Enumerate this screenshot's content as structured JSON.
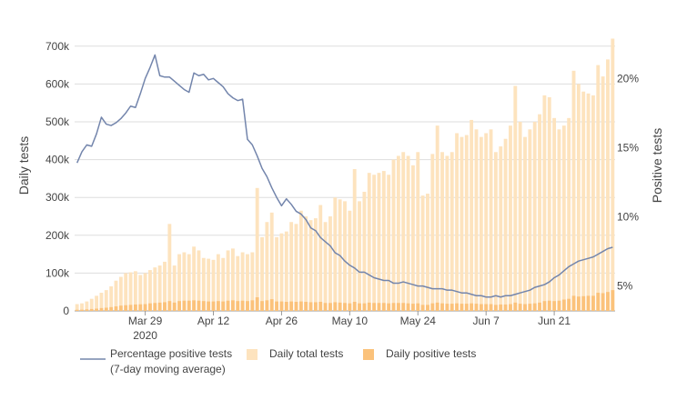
{
  "chart_data": {
    "type": "bar",
    "title": "",
    "ylabel": "Daily tests",
    "y2label": "Positive tests",
    "ylim": [
      0,
      750000
    ],
    "y2lim": [
      3.2,
      23.7
    ],
    "yticks": [
      0,
      100000,
      200000,
      300000,
      400000,
      500000,
      600000,
      700000
    ],
    "yticklabels": [
      "0",
      "100k",
      "200k",
      "300k",
      "400k",
      "500k",
      "600k",
      "700k"
    ],
    "y2ticks": [
      5,
      10,
      15,
      20
    ],
    "y2ticklabels": [
      "5%",
      "10%",
      "15%",
      "20%"
    ],
    "xticks": [
      {
        "day": 14,
        "label": "Mar 29",
        "sublabel": "2020"
      },
      {
        "day": 28,
        "label": "Apr 12",
        "sublabel": ""
      },
      {
        "day": 42,
        "label": "Apr 26",
        "sublabel": ""
      },
      {
        "day": 56,
        "label": "May 10",
        "sublabel": ""
      },
      {
        "day": 70,
        "label": "May 24",
        "sublabel": ""
      },
      {
        "day": 84,
        "label": "Jun 7",
        "sublabel": ""
      },
      {
        "day": 98,
        "label": "Jun 21",
        "sublabel": ""
      }
    ],
    "series": [
      {
        "name": "Daily total tests",
        "type": "bar",
        "color": "#fde3be",
        "values": [
          18000,
          20000,
          25000,
          32000,
          40000,
          48000,
          55000,
          65000,
          80000,
          90000,
          100000,
          102000,
          105000,
          95000,
          100000,
          108000,
          115000,
          120000,
          130000,
          230000,
          120000,
          150000,
          155000,
          150000,
          170000,
          160000,
          140000,
          138000,
          135000,
          150000,
          140000,
          160000,
          165000,
          145000,
          155000,
          150000,
          155000,
          325000,
          195000,
          235000,
          260000,
          195000,
          205000,
          210000,
          235000,
          230000,
          265000,
          250000,
          240000,
          245000,
          280000,
          235000,
          250000,
          300000,
          295000,
          290000,
          265000,
          375000,
          290000,
          315000,
          365000,
          360000,
          365000,
          370000,
          360000,
          400000,
          410000,
          420000,
          410000,
          385000,
          420000,
          305000,
          310000,
          415000,
          490000,
          420000,
          410000,
          420000,
          470000,
          460000,
          465000,
          505000,
          480000,
          460000,
          470000,
          480000,
          420000,
          435000,
          455000,
          490000,
          595000,
          500000,
          460000,
          480000,
          500000,
          520000,
          570000,
          565000,
          510000,
          480000,
          490000,
          510000,
          635000,
          600000,
          580000,
          575000,
          570000,
          650000,
          620000,
          665000,
          720000
        ],
        "labels": [
          "Daily total tests"
        ]
      },
      {
        "name": "Daily positive tests",
        "type": "bar",
        "color": "#fbc27b",
        "values": [
          3000,
          3200,
          4000,
          5000,
          6000,
          7500,
          8500,
          10000,
          12000,
          14000,
          15000,
          16000,
          17000,
          17500,
          18000,
          20000,
          21000,
          22000,
          23000,
          26000,
          22000,
          26000,
          27000,
          27000,
          28000,
          27000,
          26000,
          25000,
          25000,
          26000,
          25000,
          27000,
          28000,
          26000,
          27000,
          26000,
          28000,
          36000,
          26000,
          28000,
          31000,
          25000,
          25000,
          24000,
          25000,
          24000,
          25000,
          24000,
          23000,
          23000,
          24000,
          21000,
          21000,
          23000,
          22000,
          21000,
          20000,
          24000,
          20000,
          20000,
          22000,
          21000,
          21000,
          21000,
          20000,
          21000,
          21000,
          21000,
          20000,
          19000,
          20000,
          16000,
          16000,
          20000,
          22000,
          20000,
          19000,
          19000,
          20000,
          19000,
          19000,
          20000,
          19000,
          18000,
          18000,
          18000,
          16000,
          17000,
          17000,
          18000,
          22000,
          19000,
          18000,
          19000,
          20000,
          22000,
          26000,
          27000,
          26000,
          27000,
          30000,
          32000,
          40000,
          38000,
          39000,
          40000,
          40000,
          48000,
          47000,
          50000,
          55000
        ]
      },
      {
        "name": "Percentage positive tests",
        "name2": "(7-day moving average)",
        "type": "line",
        "axis": "right",
        "color": "#7385ac",
        "values": [
          [
            0,
            13.9
          ],
          [
            1,
            14.7
          ],
          [
            2,
            15.2
          ],
          [
            3,
            15.1
          ],
          [
            4,
            16.0
          ],
          [
            5,
            17.2
          ],
          [
            6,
            16.7
          ],
          [
            7,
            16.6
          ],
          [
            8,
            16.8
          ],
          [
            9,
            17.1
          ],
          [
            10,
            17.5
          ],
          [
            11,
            18.0
          ],
          [
            12,
            17.9
          ],
          [
            13,
            18.9
          ],
          [
            14,
            20.0
          ],
          [
            15,
            20.8
          ],
          [
            16,
            21.7
          ],
          [
            17,
            20.2
          ],
          [
            18,
            20.1
          ],
          [
            19,
            20.1
          ],
          [
            20,
            19.8
          ],
          [
            21,
            19.5
          ],
          [
            22,
            19.2
          ],
          [
            23,
            19.0
          ],
          [
            24,
            20.4
          ],
          [
            25,
            20.2
          ],
          [
            26,
            20.3
          ],
          [
            27,
            19.9
          ],
          [
            28,
            20.0
          ],
          [
            29,
            19.7
          ],
          [
            30,
            19.4
          ],
          [
            31,
            18.9
          ],
          [
            32,
            18.6
          ],
          [
            33,
            18.4
          ],
          [
            34,
            18.5
          ],
          [
            35,
            15.6
          ],
          [
            36,
            15.2
          ],
          [
            37,
            14.4
          ],
          [
            38,
            13.5
          ],
          [
            39,
            12.9
          ],
          [
            40,
            12.1
          ],
          [
            41,
            11.4
          ],
          [
            42,
            10.8
          ],
          [
            43,
            11.3
          ],
          [
            44,
            10.9
          ],
          [
            45,
            10.4
          ],
          [
            46,
            10.2
          ],
          [
            47,
            9.8
          ],
          [
            48,
            9.2
          ],
          [
            49,
            9.0
          ],
          [
            50,
            8.5
          ],
          [
            51,
            8.2
          ],
          [
            52,
            7.9
          ],
          [
            53,
            7.4
          ],
          [
            54,
            7.2
          ],
          [
            55,
            6.8
          ],
          [
            56,
            6.5
          ],
          [
            57,
            6.3
          ],
          [
            58,
            6.0
          ],
          [
            59,
            6.0
          ],
          [
            60,
            5.8
          ],
          [
            61,
            5.6
          ],
          [
            62,
            5.5
          ],
          [
            63,
            5.4
          ],
          [
            64,
            5.4
          ],
          [
            65,
            5.2
          ],
          [
            66,
            5.2
          ],
          [
            67,
            5.3
          ],
          [
            68,
            5.2
          ],
          [
            69,
            5.1
          ],
          [
            70,
            5.0
          ],
          [
            71,
            5.0
          ],
          [
            72,
            4.9
          ],
          [
            73,
            4.8
          ],
          [
            74,
            4.8
          ],
          [
            75,
            4.8
          ],
          [
            76,
            4.7
          ],
          [
            77,
            4.7
          ],
          [
            78,
            4.6
          ],
          [
            79,
            4.5
          ],
          [
            80,
            4.5
          ],
          [
            81,
            4.4
          ],
          [
            82,
            4.3
          ],
          [
            83,
            4.3
          ],
          [
            84,
            4.2
          ],
          [
            85,
            4.2
          ],
          [
            86,
            4.3
          ],
          [
            87,
            4.2
          ],
          [
            88,
            4.3
          ],
          [
            89,
            4.3
          ],
          [
            90,
            4.4
          ],
          [
            91,
            4.5
          ],
          [
            92,
            4.6
          ],
          [
            93,
            4.7
          ],
          [
            94,
            4.9
          ],
          [
            95,
            5.0
          ],
          [
            96,
            5.1
          ],
          [
            97,
            5.3
          ],
          [
            98,
            5.6
          ],
          [
            99,
            5.8
          ],
          [
            100,
            6.1
          ],
          [
            101,
            6.4
          ],
          [
            102,
            6.6
          ],
          [
            103,
            6.8
          ],
          [
            104,
            6.9
          ],
          [
            105,
            7.0
          ],
          [
            106,
            7.1
          ],
          [
            107,
            7.3
          ],
          [
            108,
            7.5
          ],
          [
            109,
            7.7
          ],
          [
            110,
            7.8
          ]
        ]
      }
    ],
    "legend": {
      "position": "bottom-left",
      "items": [
        {
          "label": "Percentage positive tests",
          "label2": "(7-day moving average)"
        },
        {
          "label": "Daily total tests"
        },
        {
          "label": "Daily positive tests"
        }
      ]
    },
    "grid": true
  }
}
